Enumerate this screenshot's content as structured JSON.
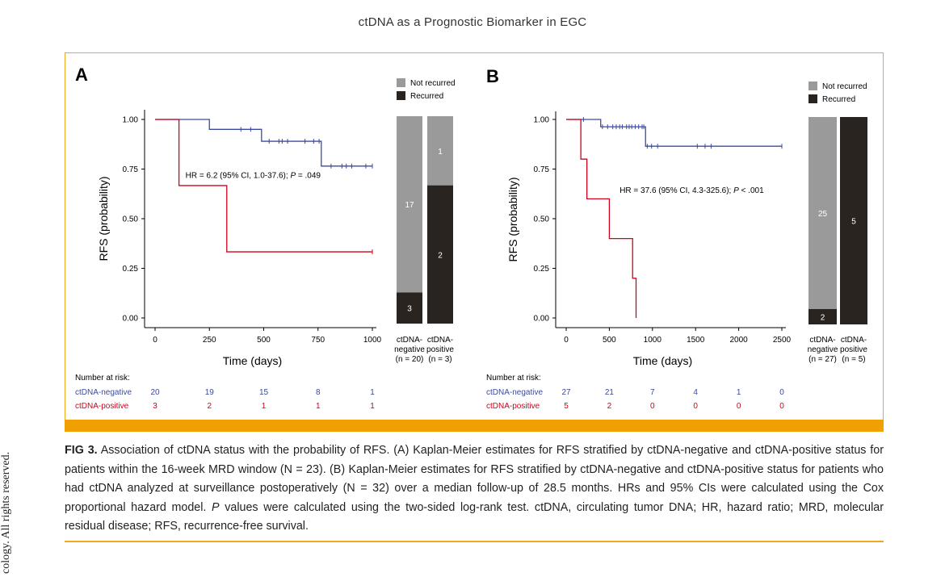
{
  "header": {
    "title": "ctDNA as a Prognostic Biomarker in EGC"
  },
  "side_text": "cology. All rights reserved.",
  "colors": {
    "negative": "#3b4aa0",
    "positive": "#d0021b",
    "not_recurred": "#9a9a9a",
    "recurred": "#2a2421",
    "accent": "#f0a000"
  },
  "chart_data": [
    {
      "type": "kaplan-meier",
      "panel_label": "A",
      "xlabel": "Time (days)",
      "ylabel": "RFS (probability)",
      "xlim": [
        0,
        1000
      ],
      "ylim": [
        0,
        1
      ],
      "x_ticks": [
        0,
        250,
        500,
        750,
        1000
      ],
      "y_ticks": [
        0,
        0.25,
        0.5,
        0.75,
        1
      ],
      "y_tick_labels": [
        "0.00",
        "0.25",
        "0.50",
        "0.75",
        "1.00"
      ],
      "annotation": {
        "hr_text": "HR = 6.2 (95% CI, 1.0-37.6); ",
        "p_label": "P",
        "p_text": " = .049",
        "x": 140,
        "y": 0.705
      },
      "series": [
        {
          "name": "ctDNA-negative",
          "color": "#3b4aa0",
          "steps": [
            [
              0,
              1
            ],
            [
              110,
              1
            ],
            [
              250,
              0.95
            ],
            [
              490,
              0.95
            ],
            [
              490,
              0.89
            ],
            [
              765,
              0.89
            ],
            [
              765,
              0.765
            ],
            [
              1000,
              0.765
            ]
          ],
          "censor": [
            [
              395,
              0.95
            ],
            [
              440,
              0.95
            ],
            [
              525,
              0.89
            ],
            [
              570,
              0.89
            ],
            [
              585,
              0.89
            ],
            [
              610,
              0.89
            ],
            [
              690,
              0.89
            ],
            [
              730,
              0.89
            ],
            [
              755,
              0.89
            ],
            [
              810,
              0.765
            ],
            [
              860,
              0.765
            ],
            [
              880,
              0.765
            ],
            [
              905,
              0.765
            ],
            [
              970,
              0.765
            ],
            [
              1000,
              0.765
            ]
          ]
        },
        {
          "name": "ctDNA-positive",
          "color": "#d0021b",
          "steps": [
            [
              0,
              1
            ],
            [
              110,
              1
            ],
            [
              110,
              0.667
            ],
            [
              330,
              0.667
            ],
            [
              330,
              0.333
            ],
            [
              1000,
              0.333
            ]
          ],
          "censor": [
            [
              1000,
              0.333
            ]
          ]
        }
      ],
      "legend": [
        "Not recurred",
        "Recurred"
      ],
      "stacked_bar": {
        "categories": [
          {
            "line1": "ctDNA-",
            "line2": "negative",
            "line3": "(n = 20)",
            "not_recurred": 17,
            "recurred": 3
          },
          {
            "line1": "ctDNA-",
            "line2": "positive",
            "line3": "(n = 3)",
            "not_recurred": 1,
            "recurred": 2
          }
        ]
      },
      "risk_table": {
        "title": "Number at risk:",
        "rows": [
          {
            "name": "ctDNA-negative",
            "values": [
              "20",
              "19",
              "15",
              "8",
              "1"
            ]
          },
          {
            "name": "ctDNA-positive",
            "values": [
              "3",
              "2",
              "1",
              "1",
              "1"
            ]
          }
        ]
      }
    },
    {
      "type": "kaplan-meier",
      "panel_label": "B",
      "xlabel": "Time (days)",
      "ylabel": "RFS (probability)",
      "xlim": [
        0,
        2500
      ],
      "ylim": [
        0,
        1
      ],
      "x_ticks": [
        0,
        500,
        1000,
        1500,
        2000,
        2500
      ],
      "y_ticks": [
        0,
        0.25,
        0.5,
        0.75,
        1
      ],
      "y_tick_labels": [
        "0.00",
        "0.25",
        "0.50",
        "0.75",
        "1.00"
      ],
      "annotation": {
        "hr_text": "HR = 37.6 (95% CI, 4.3-325.6); ",
        "p_label": "P",
        "p_text": " < .001",
        "x": 620,
        "y": 0.63
      },
      "series": [
        {
          "name": "ctDNA-negative",
          "color": "#3b4aa0",
          "steps": [
            [
              0,
              1
            ],
            [
              400,
              1
            ],
            [
              400,
              0.963
            ],
            [
              920,
              0.963
            ],
            [
              920,
              0.865
            ],
            [
              2500,
              0.865
            ]
          ],
          "censor": [
            [
              200,
              1
            ],
            [
              420,
              0.963
            ],
            [
              480,
              0.963
            ],
            [
              540,
              0.963
            ],
            [
              580,
              0.963
            ],
            [
              620,
              0.963
            ],
            [
              650,
              0.963
            ],
            [
              700,
              0.963
            ],
            [
              730,
              0.963
            ],
            [
              760,
              0.963
            ],
            [
              800,
              0.963
            ],
            [
              840,
              0.963
            ],
            [
              880,
              0.963
            ],
            [
              900,
              0.963
            ],
            [
              940,
              0.865
            ],
            [
              990,
              0.865
            ],
            [
              1060,
              0.865
            ],
            [
              1520,
              0.865
            ],
            [
              1610,
              0.865
            ],
            [
              1680,
              0.865
            ],
            [
              2500,
              0.865
            ]
          ]
        },
        {
          "name": "ctDNA-positive",
          "color": "#d0021b",
          "steps": [
            [
              0,
              1
            ],
            [
              170,
              1
            ],
            [
              170,
              0.8
            ],
            [
              240,
              0.8
            ],
            [
              240,
              0.6
            ],
            [
              500,
              0.6
            ],
            [
              500,
              0.4
            ],
            [
              770,
              0.4
            ],
            [
              770,
              0.2
            ],
            [
              810,
              0.2
            ],
            [
              810,
              0
            ]
          ],
          "censor": []
        }
      ],
      "legend": [
        "Not recurred",
        "Recurred"
      ],
      "stacked_bar": {
        "categories": [
          {
            "line1": "ctDNA-",
            "line2": "negative",
            "line3": "(n = 27)",
            "not_recurred": 25,
            "recurred": 2
          },
          {
            "line1": "ctDNA-",
            "line2": "positive",
            "line3": "(n = 5)",
            "not_recurred": 0,
            "recurred": 5
          }
        ]
      },
      "risk_table": {
        "title": "Number at risk:",
        "rows": [
          {
            "name": "ctDNA-negative",
            "values": [
              "27",
              "21",
              "7",
              "4",
              "1",
              "0"
            ]
          },
          {
            "name": "ctDNA-positive",
            "values": [
              "5",
              "2",
              "0",
              "0",
              "0",
              "0"
            ]
          }
        ]
      }
    }
  ],
  "caption": {
    "label": "FIG 3.",
    "text1": "Association of ctDNA status with the probability of RFS. (A) Kaplan-Meier estimates for RFS stratified by ctDNA-negative and ctDNA-positive status for patients within the 16-week MRD window (N = 23). (B) Kaplan-Meier estimates for RFS stratified by ctDNA-negative and ctDNA-positive status for patients who had ctDNA analyzed at surveillance postoperatively (N = 32) over a median follow-up of 28.5 months. HRs and 95% CIs were calculated using the Cox proportional hazard model.",
    "p_italic": "P",
    "text2": "values were calculated using the two-sided log-rank test. ctDNA, circulating tumor DNA; HR, hazard ratio; MRD, molecular residual disease; RFS, recurrence-free survival."
  }
}
